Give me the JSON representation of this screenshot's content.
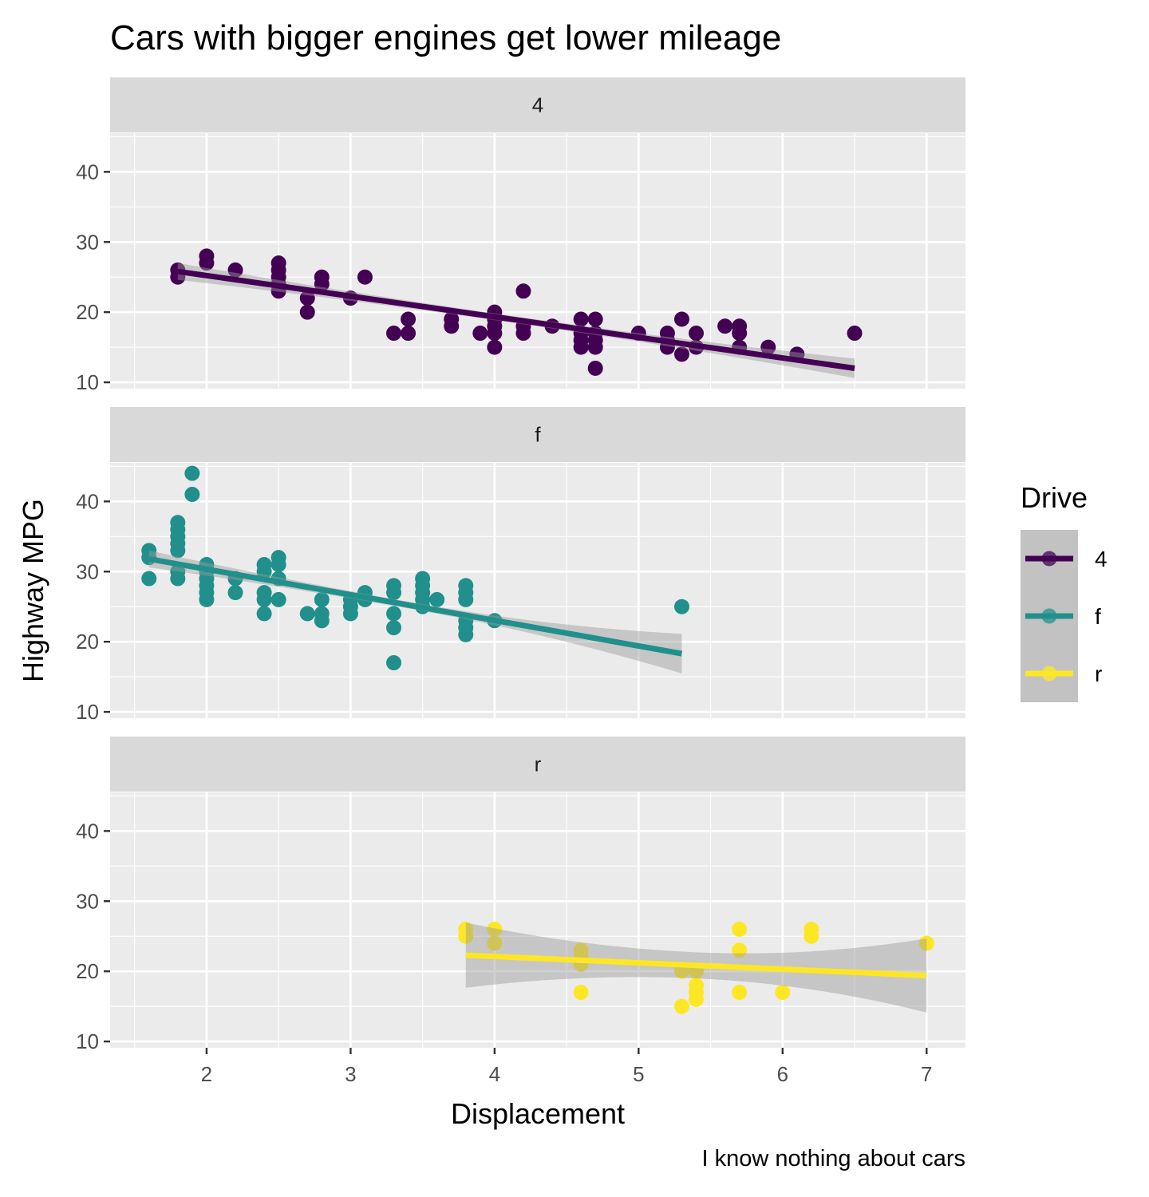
{
  "chart_data": {
    "type": "scatter",
    "title": "Cars with bigger engines get lower mileage",
    "xlabel": "Displacement",
    "ylabel": "Highway MPG",
    "caption": "I know nothing about cars",
    "xlim": [
      1.33,
      7.27
    ],
    "ylim": [
      9.1,
      45.5
    ],
    "x_ticks": [
      2,
      3,
      4,
      5,
      6,
      7
    ],
    "y_ticks": [
      10,
      20,
      30,
      40
    ],
    "grid": true,
    "facet_by": "drv",
    "legend": {
      "title": "Drive",
      "position": "right",
      "entries": [
        {
          "label": "4",
          "color": "#440154"
        },
        {
          "label": "f",
          "color": "#21908C"
        },
        {
          "label": "r",
          "color": "#FDE725"
        }
      ]
    },
    "panels": [
      {
        "strip": "4",
        "color": "#440154",
        "smooth": {
          "method": "lm",
          "x_start": 1.8,
          "y_start": 25.8,
          "x_end": 6.5,
          "y_end": 12.0,
          "se_start": 0.8,
          "se_end": 1.0
        },
        "points": [
          [
            1.8,
            26
          ],
          [
            1.8,
            25
          ],
          [
            2.0,
            28
          ],
          [
            2.0,
            27
          ],
          [
            2.2,
            26
          ],
          [
            2.5,
            27
          ],
          [
            2.5,
            26
          ],
          [
            2.5,
            25
          ],
          [
            2.5,
            24
          ],
          [
            2.5,
            23
          ],
          [
            2.7,
            22
          ],
          [
            2.7,
            20
          ],
          [
            2.8,
            25
          ],
          [
            2.8,
            24
          ],
          [
            3.0,
            22
          ],
          [
            3.1,
            25
          ],
          [
            3.3,
            17
          ],
          [
            3.4,
            19
          ],
          [
            3.4,
            17
          ],
          [
            3.7,
            19
          ],
          [
            3.7,
            18
          ],
          [
            3.9,
            17
          ],
          [
            4.0,
            20
          ],
          [
            4.0,
            19
          ],
          [
            4.0,
            18
          ],
          [
            4.0,
            17
          ],
          [
            4.0,
            15
          ],
          [
            4.2,
            23
          ],
          [
            4.2,
            18
          ],
          [
            4.2,
            17
          ],
          [
            4.4,
            18
          ],
          [
            4.6,
            19
          ],
          [
            4.6,
            17
          ],
          [
            4.6,
            16
          ],
          [
            4.6,
            15
          ],
          [
            4.7,
            19
          ],
          [
            4.7,
            17
          ],
          [
            4.7,
            16
          ],
          [
            4.7,
            15
          ],
          [
            4.7,
            12
          ],
          [
            5.0,
            17
          ],
          [
            5.2,
            17
          ],
          [
            5.2,
            16
          ],
          [
            5.2,
            15
          ],
          [
            5.3,
            19
          ],
          [
            5.3,
            14
          ],
          [
            5.4,
            17
          ],
          [
            5.4,
            15
          ],
          [
            5.6,
            18
          ],
          [
            5.7,
            18
          ],
          [
            5.7,
            17
          ],
          [
            5.7,
            15
          ],
          [
            5.9,
            15
          ],
          [
            6.1,
            14
          ],
          [
            6.5,
            17
          ]
        ]
      },
      {
        "strip": "f",
        "color": "#21908C",
        "smooth": {
          "method": "lm",
          "x_start": 1.6,
          "y_start": 31.8,
          "x_end": 5.3,
          "y_end": 18.3,
          "se_start": 0.8,
          "se_end": 2.6
        },
        "points": [
          [
            1.6,
            33
          ],
          [
            1.6,
            32
          ],
          [
            1.6,
            29
          ],
          [
            1.8,
            37
          ],
          [
            1.8,
            36
          ],
          [
            1.8,
            35
          ],
          [
            1.8,
            34
          ],
          [
            1.8,
            33
          ],
          [
            1.8,
            30
          ],
          [
            1.8,
            29
          ],
          [
            1.9,
            44
          ],
          [
            1.9,
            41
          ],
          [
            2.0,
            31
          ],
          [
            2.0,
            30
          ],
          [
            2.0,
            29
          ],
          [
            2.0,
            28
          ],
          [
            2.0,
            27
          ],
          [
            2.0,
            26
          ],
          [
            2.2,
            29
          ],
          [
            2.2,
            27
          ],
          [
            2.4,
            31
          ],
          [
            2.4,
            30
          ],
          [
            2.4,
            27
          ],
          [
            2.4,
            26
          ],
          [
            2.4,
            24
          ],
          [
            2.5,
            32
          ],
          [
            2.5,
            31
          ],
          [
            2.5,
            29
          ],
          [
            2.5,
            26
          ],
          [
            2.7,
            24
          ],
          [
            2.8,
            26
          ],
          [
            2.8,
            24
          ],
          [
            2.8,
            23
          ],
          [
            3.0,
            26
          ],
          [
            3.0,
            25
          ],
          [
            3.0,
            24
          ],
          [
            3.1,
            27
          ],
          [
            3.1,
            26
          ],
          [
            3.3,
            28
          ],
          [
            3.3,
            27
          ],
          [
            3.3,
            24
          ],
          [
            3.3,
            22
          ],
          [
            3.3,
            17
          ],
          [
            3.5,
            29
          ],
          [
            3.5,
            28
          ],
          [
            3.5,
            27
          ],
          [
            3.5,
            26
          ],
          [
            3.5,
            25
          ],
          [
            3.6,
            26
          ],
          [
            3.8,
            28
          ],
          [
            3.8,
            27
          ],
          [
            3.8,
            26
          ],
          [
            3.8,
            23
          ],
          [
            3.8,
            22
          ],
          [
            3.8,
            21
          ],
          [
            4.0,
            23
          ],
          [
            5.3,
            25
          ]
        ]
      },
      {
        "strip": "r",
        "color": "#FDE725",
        "smooth": {
          "method": "lm",
          "x_start": 3.8,
          "y_start": 22.3,
          "x_end": 7.0,
          "y_end": 19.4,
          "se_start": 3.1,
          "se_end": 3.8
        },
        "points": [
          [
            3.8,
            26
          ],
          [
            3.8,
            25
          ],
          [
            4.0,
            26
          ],
          [
            4.0,
            24
          ],
          [
            4.6,
            23
          ],
          [
            4.6,
            22
          ],
          [
            4.6,
            21
          ],
          [
            4.6,
            17
          ],
          [
            5.3,
            20
          ],
          [
            5.3,
            15
          ],
          [
            5.4,
            20
          ],
          [
            5.4,
            18
          ],
          [
            5.4,
            17
          ],
          [
            5.4,
            16
          ],
          [
            5.7,
            26
          ],
          [
            5.7,
            23
          ],
          [
            5.7,
            17
          ],
          [
            6.0,
            17
          ],
          [
            6.2,
            26
          ],
          [
            6.2,
            25
          ],
          [
            7.0,
            24
          ]
        ]
      }
    ]
  }
}
